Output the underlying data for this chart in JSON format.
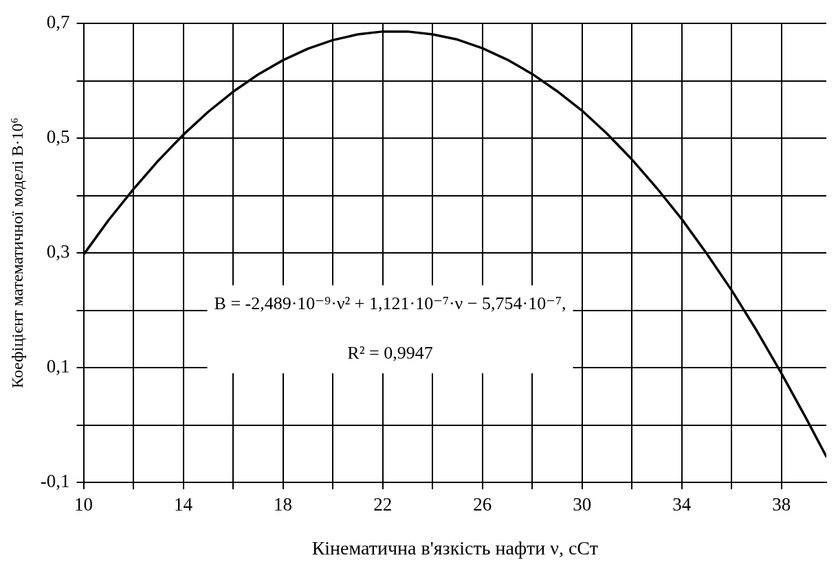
{
  "chart_data": {
    "type": "line",
    "xlabel": "Кінематична в'язкість нафти ν, сСт",
    "ylabel": "Коефіцієнт математичної моделі В·10⁶",
    "annotations": [
      "B = -2,489·10⁻⁹·ν² + 1,121·10⁻⁷·ν − 5,754·10⁻⁷,",
      "R² = 0,9947"
    ],
    "x": [
      10,
      11,
      12,
      13,
      14,
      15,
      16,
      17,
      18,
      19,
      20,
      21,
      22,
      23,
      24,
      25,
      26,
      27,
      28,
      29,
      30,
      31,
      32,
      33,
      34,
      35,
      36,
      37,
      38,
      39,
      39.8
    ],
    "series": [
      {
        "color": "#000000",
        "values": [
          0.297,
          0.357,
          0.411,
          0.461,
          0.506,
          0.546,
          0.581,
          0.611,
          0.636,
          0.656,
          0.671,
          0.681,
          0.686,
          0.686,
          0.681,
          0.672,
          0.657,
          0.637,
          0.612,
          0.582,
          0.548,
          0.508,
          0.463,
          0.413,
          0.359,
          0.299,
          0.235,
          0.165,
          0.09,
          0.011,
          -0.055
        ]
      }
    ],
    "xlim": [
      10,
      39.8
    ],
    "xticks": [
      10,
      {
        "value": 12,
        "label": null
      },
      14,
      {
        "value": 16,
        "label": null
      },
      18,
      {
        "value": 20,
        "label": null
      },
      22,
      {
        "value": 24,
        "label": null
      },
      26,
      {
        "value": 28,
        "label": null
      },
      30,
      {
        "value": 32,
        "label": null
      },
      34,
      {
        "value": 36,
        "label": null
      },
      38
    ],
    "ylim": [
      -0.1,
      0.7
    ],
    "yticks": [
      {
        "value": -0.1,
        "label": "-0,1"
      },
      {
        "value": 0,
        "label": null
      },
      {
        "value": 0.1,
        "label": "0,1"
      },
      {
        "value": 0.2,
        "label": null
      },
      {
        "value": 0.3,
        "label": "0,3"
      },
      {
        "value": 0.4,
        "label": null
      },
      {
        "value": 0.5,
        "label": "0,5"
      },
      {
        "value": 0.6,
        "label": null
      },
      {
        "value": 0.7,
        "label": "0,7"
      }
    ],
    "grid": true,
    "legend": false,
    "marker": "none",
    "line_style": "solid"
  }
}
